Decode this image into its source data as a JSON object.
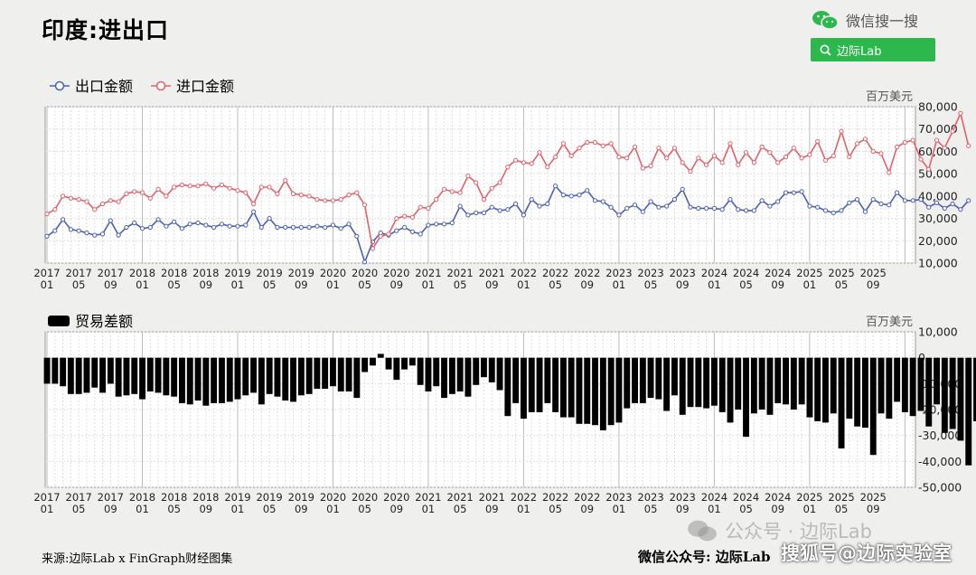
{
  "title": "印度:进出口",
  "wechat_label": "微信搜一搜",
  "search_button": "边际Lab",
  "source": "来源:边际Lab x FinGraph财经图集",
  "footer_right": "微信公众号: 边际Lab",
  "watermark": "公众号 · 边际Lab",
  "sohu_watermark": "搜狐号@边际实验室",
  "colors": {
    "export": "#4a5fb2",
    "import": "#e0606a",
    "balance": "#000000",
    "accent": "#2db84d"
  },
  "chart_data": [
    {
      "type": "line",
      "unit": "百万美元",
      "ylim": [
        10000,
        80000
      ],
      "yticks": [
        "80,000",
        "70,000",
        "60,000",
        "50,000",
        "40,000",
        "30,000",
        "20,000",
        "10,000"
      ],
      "xticks": [
        {
          "year": "2017",
          "month": "01"
        },
        {
          "year": "2017",
          "month": "05"
        },
        {
          "year": "2017",
          "month": "09"
        },
        {
          "year": "2018",
          "month": "01"
        },
        {
          "year": "2018",
          "month": "05"
        },
        {
          "year": "2018",
          "month": "09"
        },
        {
          "year": "2019",
          "month": "01"
        },
        {
          "year": "2019",
          "month": "05"
        },
        {
          "year": "2019",
          "month": "09"
        },
        {
          "year": "2020",
          "month": "01"
        },
        {
          "year": "2020",
          "month": "05"
        },
        {
          "year": "2020",
          "month": "09"
        },
        {
          "year": "2021",
          "month": "01"
        },
        {
          "year": "2021",
          "month": "05"
        },
        {
          "year": "2021",
          "month": "09"
        },
        {
          "year": "2022",
          "month": "01"
        },
        {
          "year": "2022",
          "month": "05"
        },
        {
          "year": "2022",
          "month": "09"
        },
        {
          "year": "2023",
          "month": "01"
        },
        {
          "year": "2023",
          "month": "05"
        },
        {
          "year": "2023",
          "month": "09"
        },
        {
          "year": "2024",
          "month": "01"
        },
        {
          "year": "2024",
          "month": "05"
        },
        {
          "year": "2024",
          "month": "09"
        },
        {
          "year": "2025",
          "month": "01"
        },
        {
          "year": "2025",
          "month": "05"
        },
        {
          "year": "2025",
          "month": "09"
        }
      ],
      "x_start": "2017-01",
      "series": [
        {
          "name": "出口金额",
          "values": [
            22000,
            24500,
            29500,
            25000,
            24500,
            23500,
            22500,
            23000,
            29000,
            22500,
            26000,
            28000,
            25500,
            26000,
            29500,
            26500,
            28500,
            25500,
            27500,
            28000,
            27000,
            26000,
            27500,
            26500,
            26500,
            27000,
            33000,
            26000,
            30000,
            26000,
            26000,
            26000,
            26000,
            26000,
            26500,
            26000,
            27000,
            25500,
            27500,
            22000,
            10500,
            19500,
            23500,
            22500,
            24500,
            26000,
            24000,
            23000,
            27000,
            27500,
            27500,
            28000,
            35500,
            31500,
            32500,
            32500,
            35000,
            33500,
            34000,
            36500,
            31500,
            38500,
            35500,
            36500,
            44500,
            40500,
            40000,
            40500,
            42500,
            38000,
            37500,
            35000,
            31500,
            34500,
            36000,
            33000,
            37500,
            35000,
            35500,
            38500,
            43000,
            35000,
            34500,
            34500,
            34500,
            34000,
            38500,
            34000,
            33500,
            33500,
            38000,
            35500,
            37500,
            41500,
            41500,
            42000,
            35500,
            35000,
            33500,
            32500,
            33500,
            37000,
            38500,
            33000,
            38500,
            36500,
            36000,
            41500,
            38000,
            38000,
            38500,
            35000,
            37000,
            34500,
            36500,
            34000,
            38000
          ],
          "color": "#4a5fb2"
        },
        {
          "name": "进口金额",
          "values": [
            32000,
            34000,
            40000,
            39000,
            38500,
            37500,
            34000,
            36500,
            38000,
            37500,
            41000,
            42000,
            41500,
            39000,
            43000,
            40000,
            44000,
            45000,
            44500,
            44500,
            45500,
            43500,
            45000,
            43500,
            42500,
            41500,
            36500,
            44000,
            44000,
            41000,
            47000,
            41000,
            40500,
            40000,
            38500,
            38000,
            38000,
            38500,
            40500,
            41500,
            36000,
            16500,
            22000,
            23000,
            30000,
            31000,
            30500,
            35000,
            34500,
            38500,
            43000,
            42000,
            41500,
            49000,
            46000,
            38500,
            43500,
            46000,
            53000,
            56000,
            55000,
            54500,
            59500,
            53000,
            57500,
            63500,
            58000,
            61500,
            64000,
            64000,
            62500,
            63500,
            57500,
            57000,
            62000,
            52500,
            53500,
            61500,
            57000,
            61500,
            55000,
            51000,
            57000,
            54000,
            58000,
            55000,
            63500,
            54000,
            59500,
            55000,
            62000,
            59500,
            55000,
            57500,
            61500,
            57000,
            58500,
            64500,
            56000,
            58000,
            69000,
            57500,
            63500,
            65500,
            60000,
            59000,
            50500,
            62000,
            64000,
            65000,
            56500,
            52000,
            65000,
            61500,
            69000,
            77000,
            62500
          ],
          "color": "#e0606a"
        }
      ]
    },
    {
      "type": "bar",
      "unit": "百万美元",
      "ylim": [
        -50000,
        10000
      ],
      "yticks": [
        "10,000",
        "0",
        "-10,000",
        "-20,000",
        "-30,000",
        "-40,000",
        "-50,000"
      ],
      "series": [
        {
          "name": "贸易差额",
          "values": [
            -10000,
            -10000,
            -11000,
            -14000,
            -14000,
            -13500,
            -11500,
            -13500,
            -10000,
            -15000,
            -14500,
            -14000,
            -16000,
            -13000,
            -13500,
            -14500,
            -15000,
            -17500,
            -18000,
            -16500,
            -18500,
            -17500,
            -17500,
            -17000,
            -16000,
            -14500,
            -13500,
            -18000,
            -14000,
            -15000,
            -16500,
            -17000,
            -14500,
            -14000,
            -12000,
            -12000,
            -11000,
            -13000,
            -13000,
            -15500,
            -5500,
            -3000,
            1500,
            -4500,
            -8500,
            -4500,
            -3000,
            -10500,
            -13000,
            -11000,
            -15500,
            -14000,
            -13000,
            -15000,
            -10500,
            -7500,
            -9500,
            -12500,
            -22500,
            -17500,
            -23500,
            -21000,
            -21000,
            -17500,
            -21000,
            -23000,
            -23000,
            -25500,
            -25500,
            -26000,
            -28000,
            -26000,
            -25000,
            -19500,
            -17500,
            -17500,
            -15500,
            -16000,
            -20500,
            -14500,
            -22000,
            -19000,
            -19000,
            -19500,
            -18500,
            -21000,
            -25000,
            -20000,
            -30500,
            -21500,
            -20000,
            -22000,
            -17500,
            -18000,
            -20000,
            -18000,
            -23000,
            -24500,
            -25000,
            -21500,
            -35000,
            -23500,
            -26500,
            -27000,
            -37500,
            -21500,
            -23500,
            -17000,
            -21000,
            -22500,
            -20500,
            -26500,
            -18000,
            -29000,
            -27500,
            -32000,
            -41500,
            -24500
          ],
          "color": "#000000"
        }
      ]
    }
  ]
}
